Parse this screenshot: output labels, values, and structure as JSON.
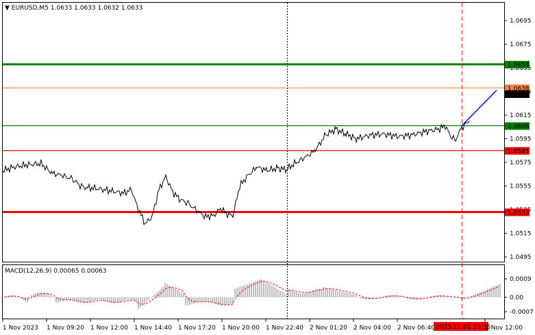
{
  "header": {
    "symbol": "EURUSD,M5",
    "ohlc": "1.0633 1.0633 1.0632 1.0633"
  },
  "macd_header": {
    "name": "MACD(12,26,9)",
    "values": "0.00065 0.00063"
  },
  "price_axis": {
    "ticks": [
      "1.0695",
      "1.0675",
      "1.0655",
      "1.0635",
      "1.0615",
      "1.0595",
      "1.0575",
      "1.0555",
      "1.0535",
      "1.0515",
      "1.0495"
    ],
    "range": [
      1.0485,
      1.0708
    ]
  },
  "macd_axis": {
    "ticks": [
      "0.0009",
      "0.00",
      "-0.0007"
    ]
  },
  "time_axis": {
    "labels": [
      "1 Nov 2023",
      "1 Nov 09:20",
      "1 Nov 12:00",
      "1 Nov 14:40",
      "1 Nov 17:20",
      "1 Nov 20:00",
      "1 Nov 22:40",
      "2 Nov 01:20",
      "2 Nov 04:00",
      "2 Nov 06:40",
      "2023.11.02 10:35",
      "2 Nov 12:00"
    ]
  },
  "levels": [
    {
      "name": "resistance-2",
      "value": 1.0658,
      "label": "1.0658",
      "color": "#008000"
    },
    {
      "name": "current-ask",
      "value": 1.0638,
      "label": "1.0638",
      "color": "#ff8040"
    },
    {
      "name": "current-bid",
      "value": 1.0633,
      "label": "1.0633",
      "color": "#000000"
    },
    {
      "name": "resistance-1",
      "value": 1.0606,
      "label": "1.0606",
      "color": "#008000"
    },
    {
      "name": "support-1",
      "value": 1.0585,
      "label": "1.0585",
      "color": "#ff0000"
    },
    {
      "name": "support-2",
      "value": 1.0533,
      "label": "1.0533",
      "color": "#ff0000"
    }
  ],
  "colors": {
    "price_line": "#000000",
    "trend_line": "#0000ff",
    "histogram": "#c0c0c0",
    "signal_line": "#ff0000",
    "vline_dotted": "#000000",
    "vline_dashed": "#ff0000",
    "time_badge": "#ff0000"
  },
  "chart_data": {
    "type": "line",
    "title": "EURUSD,M5",
    "x": [
      "1 Nov 2023",
      "1 Nov 09:20",
      "1 Nov 12:00",
      "1 Nov 14:40",
      "1 Nov 17:20",
      "1 Nov 20:00",
      "1 Nov 22:40",
      "2 Nov 01:20",
      "2 Nov 04:00",
      "2 Nov 06:40",
      "2 Nov 10:35",
      "2 Nov 12:00"
    ],
    "series": [
      {
        "values": [
          1.0567,
          1.0562,
          1.0548,
          1.0529,
          1.0532,
          1.0569,
          1.0573,
          1.0598,
          1.0597,
          1.0601,
          1.0606,
          1.0633
        ]
      }
    ],
    "ylim": [
      1.0485,
      1.0708
    ]
  }
}
